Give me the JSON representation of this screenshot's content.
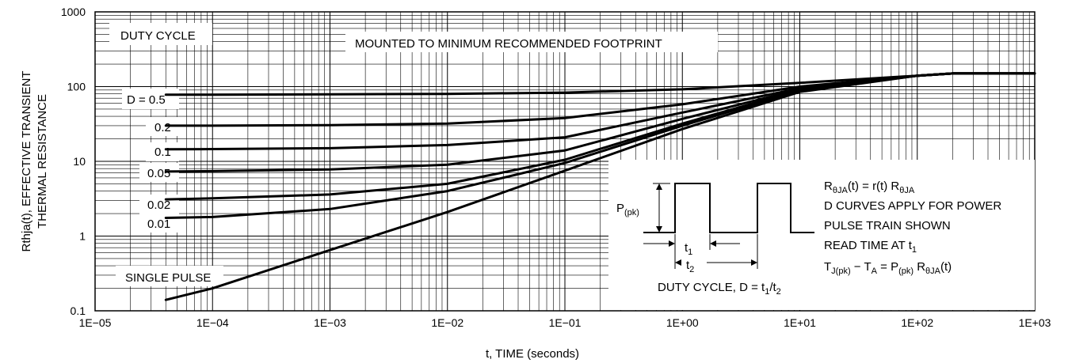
{
  "chart_data": {
    "type": "line",
    "scale": {
      "x": "log",
      "y": "log"
    },
    "xlabel": "t, TIME (seconds)",
    "ylabel_line1": "Rthja(t), EFFECTIVE TRANSIENT",
    "ylabel_line2": "THERMAL RESISTANCE",
    "xlim": [
      1e-05,
      1000
    ],
    "ylim": [
      0.1,
      1000
    ],
    "x_ticks": [
      "1E−05",
      "1E−04",
      "1E−03",
      "1E−02",
      "1E−01",
      "1E+00",
      "1E+01",
      "1E+02",
      "1E+03"
    ],
    "y_ticks": [
      "1000",
      "100",
      "10",
      "1",
      "0.1"
    ],
    "grid": true,
    "annotations": {
      "duty_cycle": "DUTY CYCLE",
      "mounting": "MOUNTED TO MINIMUM RECOMMENDED FOOTPRINT",
      "single_pulse": "SINGLE PULSE"
    },
    "series": [
      {
        "name": "D = 0.5",
        "x": [
          4e-05,
          0.0001,
          0.001,
          0.01,
          0.1,
          1,
          10,
          100,
          200,
          1000
        ],
        "y": [
          78,
          78,
          79,
          80,
          83,
          92,
          112,
          140,
          150,
          150
        ]
      },
      {
        "name": "0.2",
        "x": [
          4e-05,
          0.0001,
          0.001,
          0.01,
          0.1,
          1,
          10,
          100,
          200,
          1000
        ],
        "y": [
          30,
          30,
          30.5,
          32,
          38,
          58,
          100,
          140,
          150,
          150
        ]
      },
      {
        "name": "0.1",
        "x": [
          4e-05,
          0.0001,
          0.001,
          0.01,
          0.1,
          1,
          10,
          100,
          200,
          1000
        ],
        "y": [
          14.5,
          14.6,
          15,
          16.5,
          21,
          45,
          95,
          140,
          150,
          150
        ]
      },
      {
        "name": "0.05",
        "x": [
          4e-05,
          0.0001,
          0.001,
          0.01,
          0.1,
          1,
          10,
          100,
          200,
          1000
        ],
        "y": [
          7.3,
          7.4,
          7.8,
          9,
          14,
          37,
          92,
          140,
          150,
          150
        ]
      },
      {
        "name": "0.02",
        "x": [
          4e-05,
          0.0001,
          0.001,
          0.01,
          0.1,
          1,
          10,
          100,
          200,
          1000
        ],
        "y": [
          3.1,
          3.2,
          3.6,
          5,
          10.5,
          32,
          90,
          140,
          150,
          150
        ]
      },
      {
        "name": "0.01",
        "x": [
          4e-05,
          0.0001,
          0.001,
          0.01,
          0.1,
          1,
          10,
          100,
          200,
          1000
        ],
        "y": [
          1.75,
          1.8,
          2.3,
          4,
          9.5,
          30,
          88,
          140,
          150,
          150
        ]
      },
      {
        "name": "SINGLE PULSE",
        "x": [
          4e-05,
          0.0001,
          0.001,
          0.01,
          0.1,
          1,
          10,
          100,
          200,
          1000
        ],
        "y": [
          0.14,
          0.2,
          0.65,
          2.1,
          7.5,
          27,
          85,
          140,
          150,
          150
        ]
      }
    ],
    "inset": {
      "p_label": "P",
      "p_sub": "(pk)",
      "t1_label": "t",
      "t1_sub": "1",
      "t2_label": "t",
      "t2_sub": "2",
      "caption_main": "DUTY CYCLE, D = t",
      "caption_sub1": "1",
      "caption_slash": "/t",
      "caption_sub2": "2"
    },
    "equations": {
      "line1_a": "R",
      "line1_a_sub": "θJA",
      "line1_b": "(t) = r(t) R",
      "line1_b_sub": "θJA",
      "line2": "D CURVES APPLY FOR POWER",
      "line3": "PULSE TRAIN SHOWN",
      "line4_a": "READ TIME AT t",
      "line4_sub": "1",
      "line5_a": "T",
      "line5_a_sub": "J(pk)",
      "line5_b": " − T",
      "line5_b_sub": "A",
      "line5_c": " = P",
      "line5_c_sub": "(pk)",
      "line5_d": " R",
      "line5_d_sub": "θJA",
      "line5_e": "(t)"
    }
  }
}
